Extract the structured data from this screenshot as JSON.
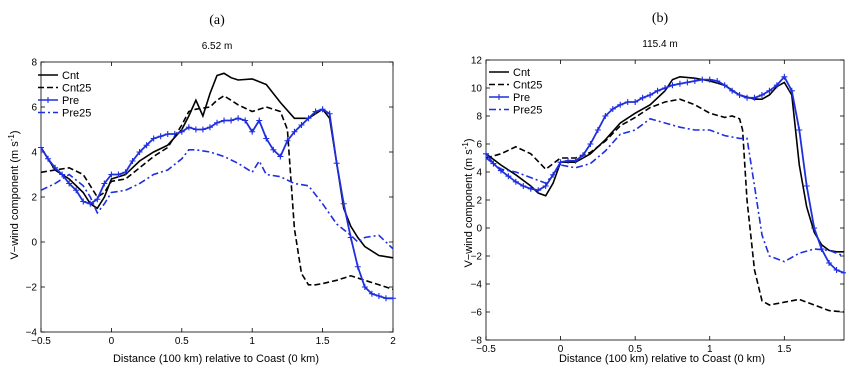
{
  "chart_data": [
    {
      "type": "line",
      "panel_label": "(a)",
      "title": "6.52 m",
      "xlabel": "Distance (100 km) relative to Coast (0 km)",
      "ylabel": "V−wind component (m s",
      "ylabel_sup": "-1",
      "ylabel_close": ")",
      "xlim": [
        -0.5,
        2
      ],
      "ylim": [
        -4,
        8
      ],
      "xticks": [
        -0.5,
        0,
        0.5,
        1,
        1.5,
        2
      ],
      "yticks": [
        -4,
        -2,
        0,
        2,
        4,
        6,
        8
      ],
      "xtick_labels": [
        "−0.5",
        "0",
        "0.5",
        "1",
        "1.5",
        "2"
      ],
      "ytick_labels": [
        "−4",
        "−2",
        "0",
        "2",
        "4",
        "6",
        "8"
      ],
      "legend": "top-right",
      "grid": false,
      "series": [
        {
          "name": "Cnt",
          "color": "#000000",
          "style": "solid",
          "marker": "none",
          "x": [
            -0.5,
            -0.4,
            -0.3,
            -0.2,
            -0.15,
            -0.1,
            -0.05,
            0,
            0.1,
            0.2,
            0.3,
            0.4,
            0.5,
            0.55,
            0.6,
            0.65,
            0.7,
            0.75,
            0.8,
            0.85,
            0.9,
            1.0,
            1.1,
            1.2,
            1.3,
            1.4,
            1.5,
            1.55,
            1.6,
            1.65,
            1.7,
            1.75,
            1.8,
            1.9,
            2.0
          ],
          "y": [
            4.2,
            3.2,
            2.8,
            2.2,
            1.7,
            1.5,
            2.0,
            2.8,
            3.0,
            3.6,
            4.0,
            4.3,
            5.0,
            5.6,
            6.3,
            5.6,
            6.6,
            7.4,
            7.5,
            7.3,
            7.2,
            7.25,
            7.0,
            6.2,
            5.5,
            5.5,
            5.9,
            5.5,
            3.5,
            1.5,
            0.7,
            0.2,
            -0.2,
            -0.6,
            -0.7
          ]
        },
        {
          "name": "Cnt25",
          "color": "#000000",
          "style": "dashed",
          "marker": "none",
          "x": [
            -0.5,
            -0.4,
            -0.3,
            -0.2,
            -0.15,
            -0.1,
            -0.05,
            0,
            0.1,
            0.2,
            0.3,
            0.4,
            0.5,
            0.55,
            0.6,
            0.7,
            0.75,
            0.8,
            0.9,
            1.0,
            1.1,
            1.2,
            1.25,
            1.3,
            1.35,
            1.4,
            1.45,
            1.5,
            1.6,
            1.7,
            1.8,
            1.9,
            2.0
          ],
          "y": [
            3.1,
            3.2,
            3.3,
            3.0,
            2.5,
            2.0,
            2.2,
            2.7,
            2.8,
            3.3,
            3.8,
            4.2,
            5.2,
            5.8,
            5.9,
            6.0,
            6.3,
            6.5,
            6.1,
            5.8,
            6.0,
            5.8,
            5.0,
            0.6,
            -1.4,
            -1.9,
            -1.9,
            -1.85,
            -1.7,
            -1.5,
            -1.7,
            -1.9,
            -2.1
          ]
        },
        {
          "name": "Pre",
          "color": "#1f2fe0",
          "style": "solid",
          "marker": "plus",
          "x": [
            -0.5,
            -0.45,
            -0.4,
            -0.35,
            -0.3,
            -0.25,
            -0.2,
            -0.15,
            -0.1,
            -0.05,
            0,
            0.05,
            0.1,
            0.15,
            0.2,
            0.25,
            0.3,
            0.35,
            0.4,
            0.45,
            0.5,
            0.55,
            0.6,
            0.65,
            0.7,
            0.75,
            0.8,
            0.85,
            0.9,
            0.95,
            1.0,
            1.05,
            1.1,
            1.15,
            1.2,
            1.25,
            1.3,
            1.35,
            1.4,
            1.45,
            1.5,
            1.55,
            1.6,
            1.65,
            1.7,
            1.75,
            1.8,
            1.85,
            1.9,
            1.95,
            2.0
          ],
          "y": [
            4.2,
            3.7,
            3.3,
            3.0,
            2.6,
            2.3,
            1.8,
            1.7,
            1.9,
            2.6,
            3.0,
            3.0,
            3.1,
            3.6,
            4.0,
            4.3,
            4.6,
            4.7,
            4.8,
            4.8,
            4.9,
            5.1,
            5.0,
            5.0,
            5.1,
            5.3,
            5.4,
            5.4,
            5.5,
            5.4,
            4.9,
            5.4,
            4.6,
            4.1,
            3.8,
            4.5,
            4.9,
            5.2,
            5.5,
            5.8,
            5.9,
            5.7,
            3.5,
            1.7,
            0.2,
            -1.1,
            -2.0,
            -2.3,
            -2.4,
            -2.5,
            -2.5
          ]
        },
        {
          "name": "Pre25",
          "color": "#1f2fe0",
          "style": "dashdot",
          "marker": "none",
          "x": [
            -0.5,
            -0.4,
            -0.3,
            -0.2,
            -0.15,
            -0.1,
            -0.05,
            0,
            0.1,
            0.2,
            0.3,
            0.4,
            0.5,
            0.55,
            0.6,
            0.7,
            0.8,
            0.9,
            1.0,
            1.05,
            1.1,
            1.2,
            1.3,
            1.4,
            1.5,
            1.6,
            1.7,
            1.75,
            1.8,
            1.9,
            2.0
          ],
          "y": [
            2.3,
            2.6,
            3.0,
            2.5,
            2.0,
            1.3,
            1.7,
            2.2,
            2.3,
            2.6,
            3.0,
            3.2,
            3.7,
            4.1,
            4.1,
            4.0,
            3.8,
            3.5,
            3.1,
            3.6,
            3.0,
            2.9,
            2.6,
            2.5,
            1.7,
            0.8,
            0.3,
            0.0,
            0.2,
            0.3,
            -0.3
          ]
        }
      ]
    },
    {
      "type": "line",
      "panel_label": "(b)",
      "title": "115.4 m",
      "xlabel": "Distance (100 km) relative to Coast (0 km)",
      "ylabel": "V−wind component (m s",
      "ylabel_sup": "-1",
      "ylabel_close": ")",
      "xlim": [
        -0.5,
        1.9
      ],
      "ylim": [
        -8,
        12
      ],
      "xticks": [
        -0.5,
        0,
        0.5,
        1,
        1.5
      ],
      "yticks": [
        -8,
        -6,
        -4,
        -2,
        0,
        2,
        4,
        6,
        8,
        10,
        12
      ],
      "xtick_labels": [
        "−0.5",
        "0",
        "0.5",
        "1",
        "1.5"
      ],
      "ytick_labels": [
        "−8",
        "−6",
        "−4",
        "−2",
        "0",
        "2",
        "4",
        "6",
        "8",
        "10",
        "12"
      ],
      "legend": "top-left",
      "grid": false,
      "series": [
        {
          "name": "Cnt",
          "color": "#000000",
          "style": "solid",
          "marker": "none",
          "x": [
            -0.5,
            -0.4,
            -0.3,
            -0.2,
            -0.15,
            -0.1,
            -0.05,
            0,
            0.1,
            0.2,
            0.3,
            0.4,
            0.5,
            0.6,
            0.7,
            0.75,
            0.8,
            0.9,
            1.0,
            1.1,
            1.2,
            1.3,
            1.35,
            1.4,
            1.45,
            1.5,
            1.55,
            1.6,
            1.65,
            1.7,
            1.75,
            1.8,
            1.85,
            1.9
          ],
          "y": [
            5.3,
            4.5,
            3.8,
            3.0,
            2.5,
            2.3,
            3.2,
            4.7,
            4.7,
            5.3,
            6.3,
            7.5,
            8.2,
            8.8,
            9.8,
            10.6,
            10.8,
            10.7,
            10.5,
            10.2,
            9.5,
            9.2,
            9.2,
            9.5,
            10.1,
            10.4,
            9.5,
            4.5,
            1.5,
            -0.3,
            -1.2,
            -1.6,
            -1.7,
            -1.7
          ]
        },
        {
          "name": "Cnt25",
          "color": "#000000",
          "style": "dashed",
          "marker": "none",
          "x": [
            -0.5,
            -0.4,
            -0.3,
            -0.2,
            -0.1,
            0,
            0.1,
            0.2,
            0.3,
            0.4,
            0.5,
            0.6,
            0.7,
            0.8,
            0.9,
            1.0,
            1.1,
            1.15,
            1.2,
            1.22,
            1.25,
            1.3,
            1.35,
            1.4,
            1.5,
            1.6,
            1.7,
            1.8,
            1.9
          ],
          "y": [
            5.0,
            5.3,
            5.8,
            5.3,
            4.2,
            5.0,
            5.0,
            5.4,
            6.2,
            7.3,
            7.9,
            8.6,
            9.0,
            9.2,
            8.8,
            8.2,
            7.9,
            8.0,
            7.8,
            7.0,
            2.0,
            -3.0,
            -5.2,
            -5.5,
            -5.3,
            -5.1,
            -5.5,
            -5.9,
            -6.0
          ]
        },
        {
          "name": "Pre",
          "color": "#1f2fe0",
          "style": "solid",
          "marker": "plus",
          "x": [
            -0.5,
            -0.45,
            -0.4,
            -0.35,
            -0.3,
            -0.25,
            -0.2,
            -0.15,
            -0.1,
            -0.05,
            0,
            0.05,
            0.1,
            0.15,
            0.2,
            0.25,
            0.3,
            0.35,
            0.4,
            0.45,
            0.5,
            0.55,
            0.6,
            0.65,
            0.7,
            0.75,
            0.8,
            0.85,
            0.9,
            0.95,
            1.0,
            1.05,
            1.1,
            1.15,
            1.2,
            1.25,
            1.3,
            1.35,
            1.4,
            1.45,
            1.5,
            1.55,
            1.6,
            1.65,
            1.7,
            1.75,
            1.8,
            1.85,
            1.9
          ],
          "y": [
            5.3,
            4.6,
            4.1,
            3.7,
            3.3,
            3.0,
            2.8,
            2.7,
            3.0,
            3.8,
            4.7,
            4.8,
            4.8,
            5.2,
            6.0,
            7.0,
            8.0,
            8.5,
            8.8,
            9.0,
            9.0,
            9.3,
            9.5,
            9.8,
            10.0,
            10.2,
            10.3,
            10.4,
            10.5,
            10.6,
            10.6,
            10.5,
            10.2,
            9.8,
            9.5,
            9.3,
            9.3,
            9.5,
            9.8,
            10.2,
            10.8,
            9.8,
            7.0,
            3.0,
            0.0,
            -1.5,
            -2.5,
            -3.0,
            -3.2
          ]
        },
        {
          "name": "Pre25",
          "color": "#1f2fe0",
          "style": "dashdot",
          "marker": "none",
          "x": [
            -0.5,
            -0.4,
            -0.3,
            -0.2,
            -0.1,
            0,
            0.1,
            0.2,
            0.3,
            0.4,
            0.5,
            0.6,
            0.7,
            0.8,
            0.9,
            1.0,
            1.1,
            1.2,
            1.25,
            1.3,
            1.35,
            1.4,
            1.5,
            1.6,
            1.7,
            1.8,
            1.9
          ],
          "y": [
            5.0,
            4.2,
            4.0,
            3.6,
            3.2,
            4.5,
            4.3,
            4.6,
            5.5,
            6.7,
            7.0,
            7.8,
            7.5,
            7.2,
            7.0,
            7.0,
            6.6,
            6.4,
            6.4,
            3.0,
            -0.5,
            -2.0,
            -2.4,
            -1.8,
            -1.5,
            -1.6,
            -2.0
          ]
        }
      ]
    }
  ]
}
